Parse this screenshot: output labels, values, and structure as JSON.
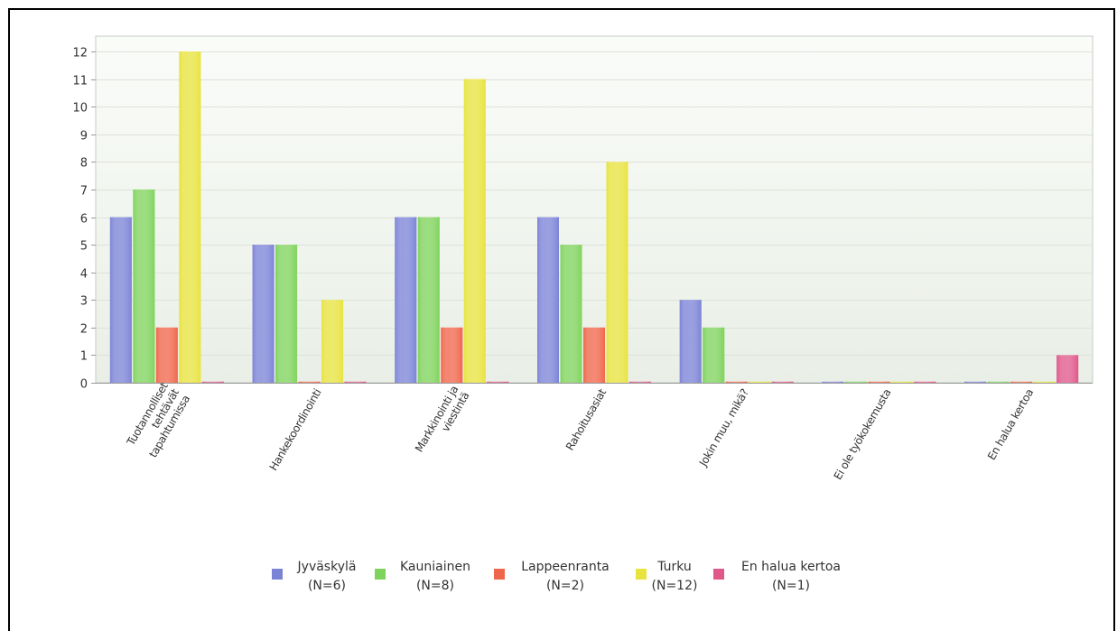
{
  "chart_data": {
    "type": "bar",
    "title": "",
    "xlabel": "",
    "ylabel": "",
    "ylim": [
      0,
      12.5
    ],
    "yticks": [
      0,
      1,
      2,
      3,
      4,
      5,
      6,
      7,
      8,
      9,
      10,
      11,
      12
    ],
    "grid": true,
    "legend_position": "bottom",
    "categories": [
      [
        "Tuotannolliset",
        "tehtävät",
        "tapahtumissa"
      ],
      [
        "Hankekoordinointi"
      ],
      [
        "Markkinointi ja",
        "viestintä"
      ],
      [
        "Rahoitusasiat"
      ],
      [
        "Jokin muu, mikä?"
      ],
      [
        "Ei ole työkokemusta"
      ],
      [
        "En halua kertoa"
      ]
    ],
    "series": [
      {
        "name": "Jyväskylä",
        "n": "(N=6)",
        "color": "#7b83d6",
        "values": [
          6,
          5,
          6,
          6,
          3,
          0,
          0
        ]
      },
      {
        "name": "Kauniainen",
        "n": "(N=8)",
        "color": "#7fd35c",
        "values": [
          7,
          5,
          6,
          5,
          2,
          0,
          0
        ]
      },
      {
        "name": "Lappeenranta",
        "n": "(N=2)",
        "color": "#f0664a",
        "values": [
          2,
          0,
          2,
          2,
          0,
          0,
          0
        ]
      },
      {
        "name": "Turku",
        "n": "(N=12)",
        "color": "#e8e33e",
        "values": [
          12,
          3,
          11,
          8,
          0,
          0,
          0
        ]
      },
      {
        "name": "En halua kertoa",
        "n": "(N=1)",
        "color": "#e0578a",
        "values": [
          0,
          0,
          0,
          0,
          0,
          0,
          1
        ]
      }
    ]
  }
}
